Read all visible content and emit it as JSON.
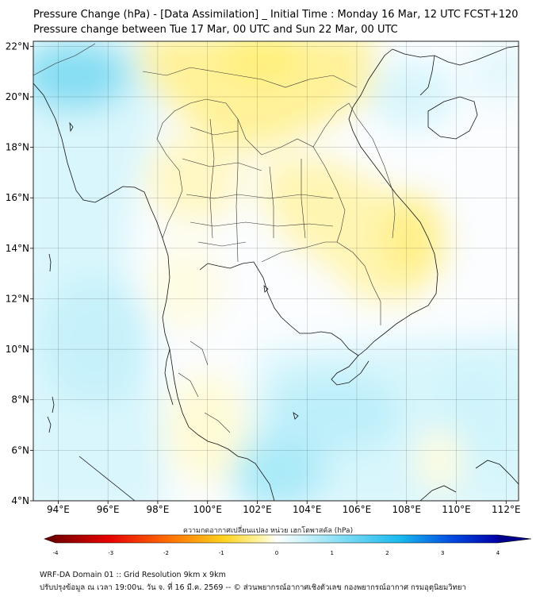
{
  "title_line1": "Pressure Change (hPa) - [Data Assimilation] _ Initial Time : Monday 16 Mar, 12 UTC FCST+120",
  "title_line2": "Pressure change between Tue 17 Mar, 00 UTC and Sun 22 Mar, 00 UTC",
  "lat_ticks": [
    "22°N",
    "20°N",
    "18°N",
    "16°N",
    "14°N",
    "12°N",
    "10°N",
    "8°N",
    "6°N",
    "4°N"
  ],
  "lat_values": [
    22,
    20,
    18,
    16,
    14,
    12,
    10,
    8,
    6,
    4
  ],
  "lon_ticks": [
    "94°E",
    "96°E",
    "98°E",
    "100°E",
    "102°E",
    "104°E",
    "106°E",
    "108°E",
    "110°E",
    "112°E"
  ],
  "lon_values": [
    94,
    96,
    98,
    100,
    102,
    104,
    106,
    108,
    110,
    112
  ],
  "map_extent": {
    "lon_min": 93.0,
    "lon_max": 112.5,
    "lat_min": 4.0,
    "lat_max": 22.2
  },
  "colorbar": {
    "label": "ความกดอากาศเปลี่ยนแปลง หน่วย เฮกโตพาสคัล (hPa)",
    "min": -4,
    "max": 4,
    "ticks": [
      "-4",
      "-3",
      "-2",
      "-1",
      "0",
      "1",
      "2",
      "3",
      "4"
    ],
    "colors": {
      "neg_strong": "#7a0000",
      "neg_mid": "#ff2a1a",
      "neg_weak": "#ffd21e",
      "neutral": "#ffffff",
      "pos_weak": "#aaeefa",
      "pos_mid": "#18b8ee",
      "pos_strong": "#0000a8"
    }
  },
  "footer_line1": "WRF-DA Domain 01 :: Grid Resolution 9km x 9km",
  "footer_line2": "ปรับปรุงข้อมูล ณ เวลา 19:00น. วัน จ. ที่ 16 มี.ค. 2569 -- © ส่วนพยากรณ์อากาศเชิงตัวเลข กองพยากรณ์อากาศ กรมอุตุนิยมวิทยา",
  "field_colors": {
    "yellow_strong": "#fff07a",
    "yellow_light": "#fffcd2",
    "white": "#fbfdff",
    "cyan_light": "#d8f6fc",
    "cyan": "#b8eef9",
    "cyan_strong": "#86def3"
  }
}
